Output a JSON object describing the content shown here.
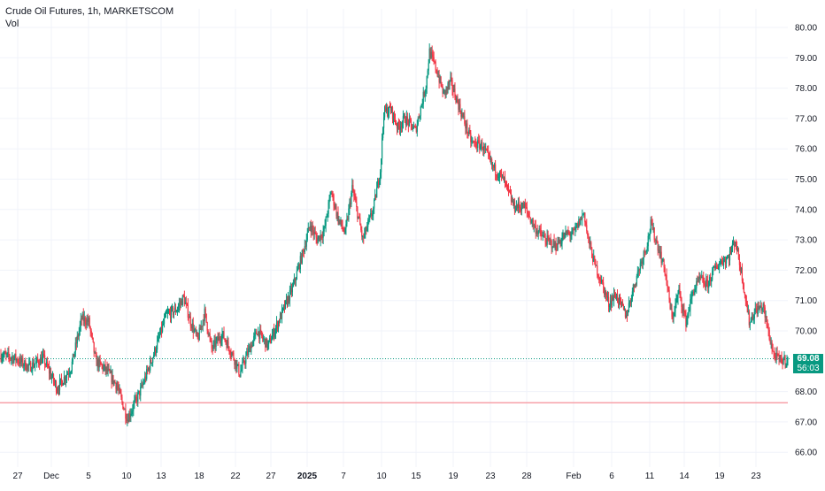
{
  "legend": {
    "title": "Crude Oil Futures, 1h, MARKETSCOM",
    "volume_label": "Vol"
  },
  "colors": {
    "up": "#089981",
    "down": "#f23645",
    "grid": "#f0f3fa",
    "axis_text": "#131722",
    "last_price_line": "#089981",
    "support_line": "#f7a1a8"
  },
  "chart_data": {
    "type": "candlestick",
    "title": "",
    "symbol": "Crude Oil Futures",
    "interval": "1h",
    "source": "MARKETSCOM",
    "ylim": [
      65.8,
      80.3
    ],
    "y_ticks": [
      "66.00",
      "67.00",
      "68.00",
      "69.00",
      "70.00",
      "71.00",
      "72.00",
      "73.00",
      "74.00",
      "75.00",
      "76.00",
      "77.00",
      "78.00",
      "79.00",
      "80.00"
    ],
    "x_ticks": [
      "27",
      "Dec",
      "5",
      "10",
      "13",
      "18",
      "22",
      "27",
      "2025",
      "7",
      "10",
      "15",
      "19",
      "23",
      "28",
      "Feb",
      "6",
      "11",
      "14",
      "19",
      "23"
    ],
    "last_price": "69.08",
    "countdown": "56:03",
    "horizontal_level": 67.63,
    "path_anchors": [
      [
        0,
        69.2
      ],
      [
        4,
        69.1
      ],
      [
        8,
        68.8
      ],
      [
        12,
        69.1
      ],
      [
        16,
        68.1
      ],
      [
        20,
        68.8
      ],
      [
        23,
        70.4
      ],
      [
        25,
        70.3
      ],
      [
        27,
        69.0
      ],
      [
        30,
        68.7
      ],
      [
        33,
        68.2
      ],
      [
        36,
        67.1
      ],
      [
        40,
        68.1
      ],
      [
        44,
        69.4
      ],
      [
        47,
        70.5
      ],
      [
        50,
        70.7
      ],
      [
        52,
        71.1
      ],
      [
        54,
        70.3
      ],
      [
        56,
        69.7
      ],
      [
        58,
        70.6
      ],
      [
        60,
        69.4
      ],
      [
        63,
        69.9
      ],
      [
        66,
        69.2
      ],
      [
        68,
        68.6
      ],
      [
        70,
        69.2
      ],
      [
        73,
        70.0
      ],
      [
        76,
        69.5
      ],
      [
        79,
        70.3
      ],
      [
        83,
        71.4
      ],
      [
        86,
        72.6
      ],
      [
        88,
        73.5
      ],
      [
        90,
        73.0
      ],
      [
        92,
        73.3
      ],
      [
        94,
        74.6
      ],
      [
        96,
        73.7
      ],
      [
        98,
        73.2
      ],
      [
        100,
        74.7
      ],
      [
        102,
        73.6
      ],
      [
        103,
        73.0
      ],
      [
        106,
        74.0
      ],
      [
        108,
        75.3
      ],
      [
        109,
        77.2
      ],
      [
        111,
        77.3
      ],
      [
        113,
        76.7
      ],
      [
        115,
        77.0
      ],
      [
        118,
        76.6
      ],
      [
        121,
        78.1
      ],
      [
        122,
        79.2
      ],
      [
        124,
        78.6
      ],
      [
        126,
        77.8
      ],
      [
        128,
        78.2
      ],
      [
        131,
        77.2
      ],
      [
        134,
        76.2
      ],
      [
        137,
        76.1
      ],
      [
        140,
        75.4
      ],
      [
        143,
        75.0
      ],
      [
        146,
        74.1
      ],
      [
        149,
        74.1
      ],
      [
        152,
        73.4
      ],
      [
        155,
        73.0
      ],
      [
        158,
        72.8
      ],
      [
        161,
        73.2
      ],
      [
        163,
        73.2
      ],
      [
        166,
        73.9
      ],
      [
        167,
        73.1
      ],
      [
        169,
        72.2
      ],
      [
        171,
        71.6
      ],
      [
        173,
        70.9
      ],
      [
        175,
        71.2
      ],
      [
        178,
        70.5
      ],
      [
        180,
        71.4
      ],
      [
        182,
        72.2
      ],
      [
        184,
        72.9
      ],
      [
        185,
        73.5
      ],
      [
        187,
        72.8
      ],
      [
        189,
        72.0
      ],
      [
        191,
        70.4
      ],
      [
        193,
        71.3
      ],
      [
        195,
        70.3
      ],
      [
        197,
        71.3
      ],
      [
        199,
        71.7
      ],
      [
        201,
        71.5
      ],
      [
        203,
        72.0
      ],
      [
        205,
        72.3
      ],
      [
        207,
        72.4
      ],
      [
        209,
        73.0
      ],
      [
        211,
        71.8
      ],
      [
        213,
        70.3
      ],
      [
        215,
        70.7
      ],
      [
        217,
        70.8
      ],
      [
        218,
        70.2
      ],
      [
        220,
        69.2
      ],
      [
        222,
        69.0
      ],
      [
        224,
        69.1
      ]
    ]
  }
}
